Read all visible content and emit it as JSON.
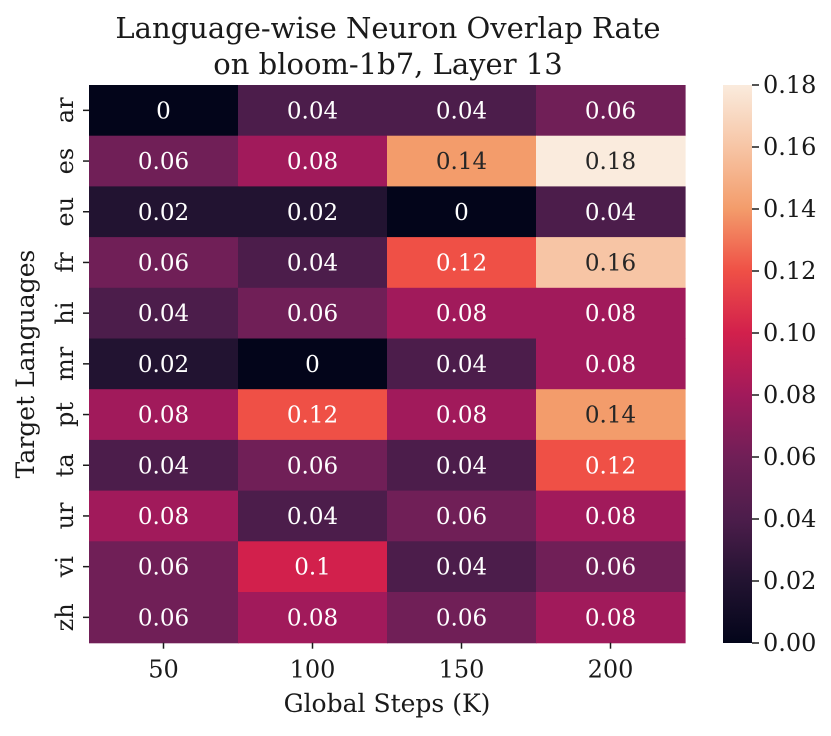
{
  "chart_data": {
    "type": "heatmap",
    "title": [
      "Language-wise Neuron Overlap Rate",
      "on bloom-1b7, Layer 13"
    ],
    "xlabel": "Global Steps (K)",
    "ylabel": "Target Languages",
    "x_categories": [
      "50",
      "100",
      "150",
      "200"
    ],
    "y_categories": [
      "ar",
      "es",
      "eu",
      "fr",
      "hi",
      "mr",
      "pt",
      "ta",
      "ur",
      "vi",
      "zh"
    ],
    "values": [
      [
        0,
        0.04,
        0.04,
        0.06
      ],
      [
        0.06,
        0.08,
        0.14,
        0.18
      ],
      [
        0.02,
        0.02,
        0,
        0.04
      ],
      [
        0.06,
        0.04,
        0.12,
        0.16
      ],
      [
        0.04,
        0.06,
        0.08,
        0.08
      ],
      [
        0.02,
        0,
        0.04,
        0.08
      ],
      [
        0.08,
        0.12,
        0.08,
        0.14
      ],
      [
        0.04,
        0.06,
        0.04,
        0.12
      ],
      [
        0.08,
        0.04,
        0.06,
        0.08
      ],
      [
        0.06,
        0.1,
        0.04,
        0.06
      ],
      [
        0.06,
        0.08,
        0.06,
        0.08
      ]
    ],
    "cell_labels": [
      [
        "0",
        "0.04",
        "0.04",
        "0.06"
      ],
      [
        "0.06",
        "0.08",
        "0.14",
        "0.18"
      ],
      [
        "0.02",
        "0.02",
        "0",
        "0.04"
      ],
      [
        "0.06",
        "0.04",
        "0.12",
        "0.16"
      ],
      [
        "0.04",
        "0.06",
        "0.08",
        "0.08"
      ],
      [
        "0.02",
        "0",
        "0.04",
        "0.08"
      ],
      [
        "0.08",
        "0.12",
        "0.08",
        "0.14"
      ],
      [
        "0.04",
        "0.06",
        "0.04",
        "0.12"
      ],
      [
        "0.08",
        "0.04",
        "0.06",
        "0.08"
      ],
      [
        "0.06",
        "0.1",
        "0.04",
        "0.06"
      ],
      [
        "0.06",
        "0.08",
        "0.06",
        "0.08"
      ]
    ],
    "colorbar": {
      "colormap": "rocket",
      "vmin": 0.0,
      "vmax": 0.18,
      "ticks": [
        "0.00",
        "0.02",
        "0.04",
        "0.06",
        "0.08",
        "0.10",
        "0.12",
        "0.14",
        "0.16",
        "0.18"
      ]
    },
    "cell_colors": {
      "0": "#03051a",
      "0.02": "#221331",
      "0.04": "#4c1d4b",
      "0.06": "#701f57",
      "0.08": "#a11a5b",
      "0.1": "#d2204c",
      "0.12": "#ef5046",
      "0.14": "#f39c6b",
      "0.16": "#f7c5a5",
      "0.18": "#faebdd"
    },
    "grid": false,
    "legend": "colorbar-right"
  }
}
